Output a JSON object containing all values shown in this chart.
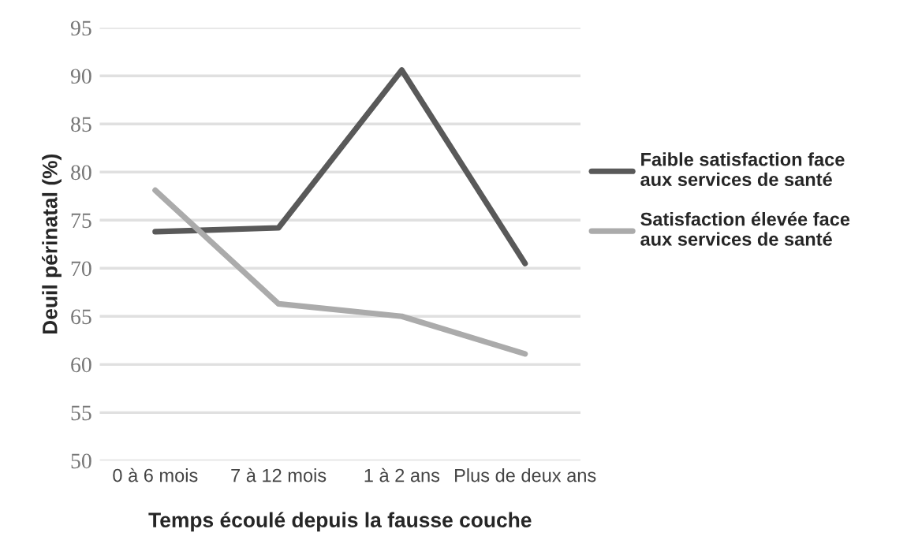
{
  "chart_data": {
    "type": "line",
    "xlabel": "Temps écoulé depuis la fausse couche",
    "ylabel": "Deuil périnatal (%)",
    "categories": [
      "0 à 6 mois",
      "7 à 12 mois",
      "1 à 2 ans",
      "Plus de deux ans"
    ],
    "series": [
      {
        "name": "Faible satisfaction face\naux services de santé",
        "color": "#595959",
        "values": [
          73.8,
          74.2,
          90.6,
          70.5
        ]
      },
      {
        "name": "Satisfaction élevée face\naux services de santé",
        "color": "#ababab",
        "values": [
          78.1,
          66.3,
          65.0,
          61.1
        ]
      }
    ],
    "ylim": [
      50,
      95
    ],
    "yticks": [
      50,
      55,
      60,
      65,
      70,
      75,
      80,
      85,
      90,
      95
    ],
    "grid": "y",
    "legend": "right",
    "marker": "none",
    "line_style": "solid"
  }
}
